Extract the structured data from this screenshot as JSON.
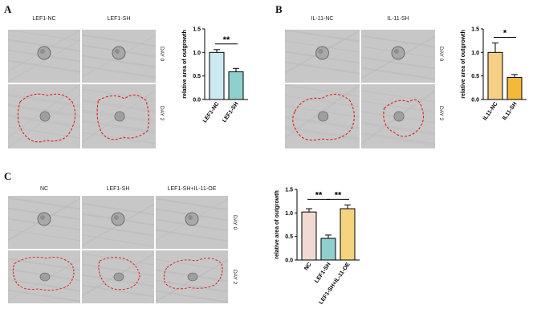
{
  "panels": {
    "A": {
      "letter": "A",
      "columns": [
        "LEF1-NC",
        "LEF1-SH"
      ],
      "rows": [
        "DAY 0",
        "DAY 2"
      ]
    },
    "B": {
      "letter": "B",
      "columns": [
        "IL-11-NC",
        "IL-11-SH"
      ],
      "rows": [
        "DAY 0",
        "DAY 2"
      ]
    },
    "C": {
      "letter": "C",
      "columns": [
        "NC",
        "LEF1-SH",
        "LEF1-SH+IL-11-OE"
      ],
      "rows": [
        "DAY 0",
        "DAY 2"
      ]
    }
  },
  "chart_data": [
    {
      "id": "A",
      "type": "bar",
      "categories": [
        "LEF1-NC",
        "LEF1-SH"
      ],
      "values": [
        1.0,
        0.59
      ],
      "errors": [
        0.06,
        0.07
      ],
      "colors": [
        "#cdeaf2",
        "#8fd0cf"
      ],
      "ylabel": "relative area of outgrowth",
      "ylim": [
        0,
        1.5
      ],
      "yticks": [
        "0.0",
        "0.5",
        "1.0",
        "1.5"
      ],
      "significance": [
        {
          "from": 0,
          "to": 1,
          "label": "**"
        }
      ]
    },
    {
      "id": "B",
      "type": "bar",
      "categories": [
        "IL11-NC",
        "IL11-SH"
      ],
      "values": [
        1.0,
        0.47
      ],
      "errors": [
        0.2,
        0.06
      ],
      "colors": [
        "#f6cf86",
        "#f5b93a"
      ],
      "ylabel": "relative area of outgrowth",
      "ylim": [
        0,
        1.5
      ],
      "yticks": [
        "0.0",
        "0.5",
        "1.0",
        "1.5"
      ],
      "significance": [
        {
          "from": 0,
          "to": 1,
          "label": "*"
        }
      ]
    },
    {
      "id": "C",
      "type": "bar",
      "categories": [
        "NC",
        "LEF1-SH",
        "LEF1-SH+IL-11-OE"
      ],
      "values": [
        1.02,
        0.46,
        1.09
      ],
      "errors": [
        0.07,
        0.07,
        0.08
      ],
      "colors": [
        "#f2d9d2",
        "#8fd0cf",
        "#f6d37e"
      ],
      "ylabel": "relative area of outgrowth",
      "ylim": [
        0,
        1.5
      ],
      "yticks": [
        "0.0",
        "0.5",
        "1.0",
        "1.5"
      ],
      "significance": [
        {
          "from": 0,
          "to": 1,
          "label": "**"
        },
        {
          "from": 1,
          "to": 2,
          "label": "**"
        }
      ]
    }
  ]
}
